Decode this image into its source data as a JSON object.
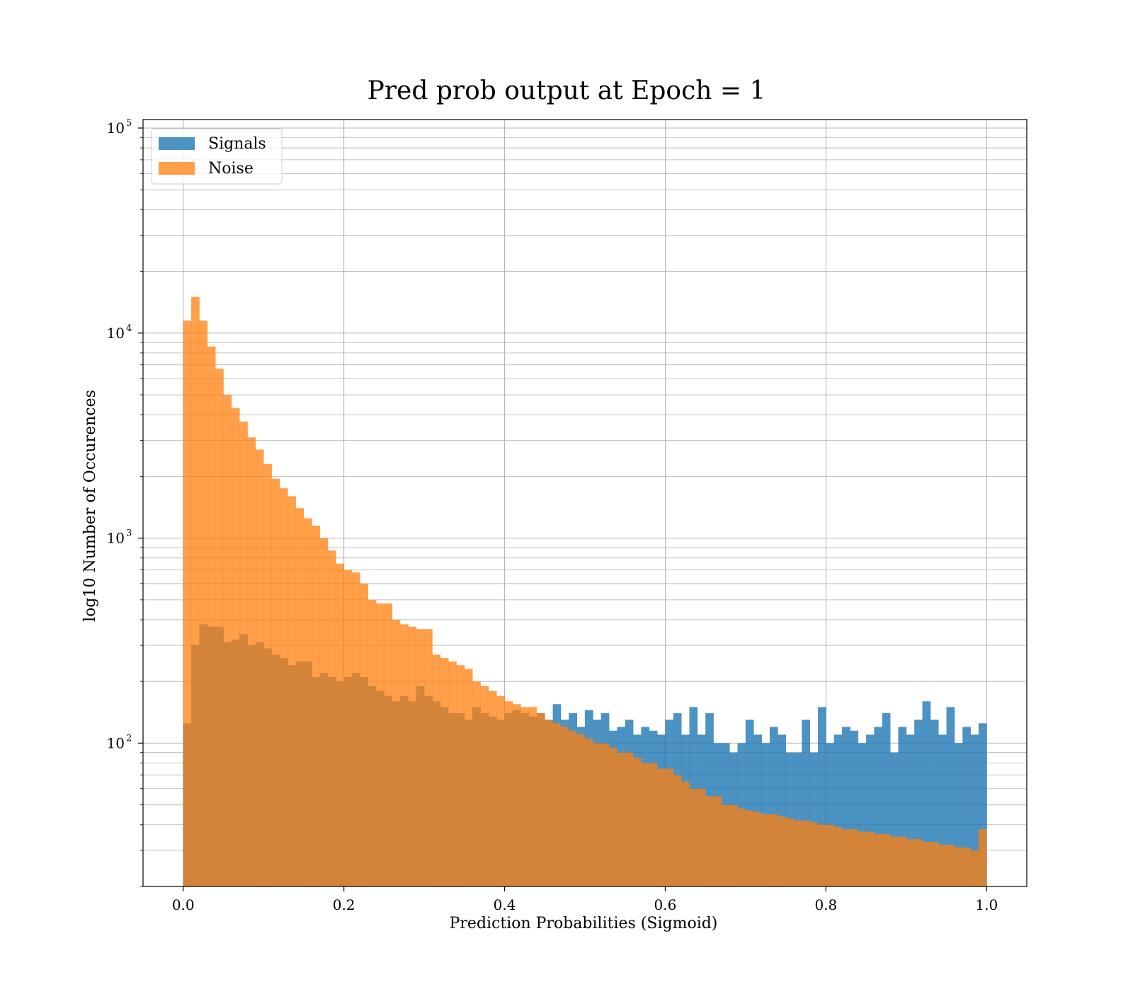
{
  "chart_data": {
    "type": "histogram",
    "title": "Pred prob output at Epoch = 1",
    "xlabel": "Prediction Probabilities (Sigmoid)",
    "ylabel": "log10 Number of Occurences",
    "xlim": [
      -0.05,
      1.05
    ],
    "ylim": [
      20,
      110000
    ],
    "yscale": "log",
    "grid": true,
    "legend_position": "top-left",
    "bin_edges_range": [
      0,
      1
    ],
    "bin_count": 100,
    "x_ticks": [
      "0.0",
      "0.2",
      "0.4",
      "0.6",
      "0.8",
      "1.0"
    ],
    "x_tick_values": [
      0,
      0.2,
      0.4,
      0.6,
      0.8,
      1.0
    ],
    "y_ticks": [
      {
        "value": 100,
        "base": "10",
        "exp": "2"
      },
      {
        "value": 1000,
        "base": "10",
        "exp": "3"
      },
      {
        "value": 10000,
        "base": "10",
        "exp": "4"
      },
      {
        "value": 100000,
        "base": "10",
        "exp": "5"
      }
    ],
    "series": [
      {
        "name": "Signals",
        "color": "#1f77b4",
        "alpha": 0.8,
        "values": [
          125,
          300,
          380,
          370,
          370,
          310,
          320,
          340,
          300,
          310,
          290,
          270,
          260,
          240,
          250,
          250,
          210,
          220,
          210,
          200,
          210,
          220,
          210,
          190,
          180,
          170,
          160,
          170,
          160,
          190,
          170,
          160,
          150,
          140,
          140,
          130,
          150,
          140,
          135,
          130,
          140,
          145,
          140,
          135,
          140,
          130,
          155,
          130,
          140,
          120,
          145,
          130,
          140,
          115,
          120,
          130,
          110,
          120,
          115,
          110,
          130,
          140,
          110,
          150,
          110,
          140,
          100,
          100,
          90,
          100,
          130,
          110,
          100,
          120,
          110,
          90,
          90,
          130,
          90,
          150,
          100,
          110,
          120,
          115,
          100,
          110,
          120,
          140,
          90,
          120,
          110,
          130,
          160,
          130,
          110,
          150,
          100,
          120,
          110,
          125
        ]
      },
      {
        "name": "Noise",
        "color": "#ff7f0e",
        "alpha": 0.75,
        "values": [
          11500,
          15000,
          11500,
          8600,
          6700,
          5000,
          4300,
          3700,
          3100,
          2700,
          2300,
          1950,
          1750,
          1600,
          1400,
          1250,
          1150,
          1000,
          870,
          750,
          700,
          680,
          600,
          500,
          480,
          480,
          400,
          380,
          370,
          360,
          360,
          270,
          260,
          250,
          240,
          230,
          200,
          190,
          180,
          170,
          160,
          155,
          150,
          150,
          140,
          130,
          125,
          120,
          115,
          110,
          105,
          100,
          100,
          95,
          90,
          90,
          85,
          80,
          80,
          75,
          75,
          70,
          65,
          60,
          60,
          55,
          55,
          50,
          50,
          48,
          47,
          46,
          45,
          45,
          44,
          43,
          42,
          42,
          41,
          40,
          40,
          39,
          38,
          38,
          37,
          37,
          36,
          36,
          35,
          35,
          34,
          34,
          33,
          33,
          32,
          32,
          31,
          31,
          30,
          38
        ]
      }
    ]
  }
}
